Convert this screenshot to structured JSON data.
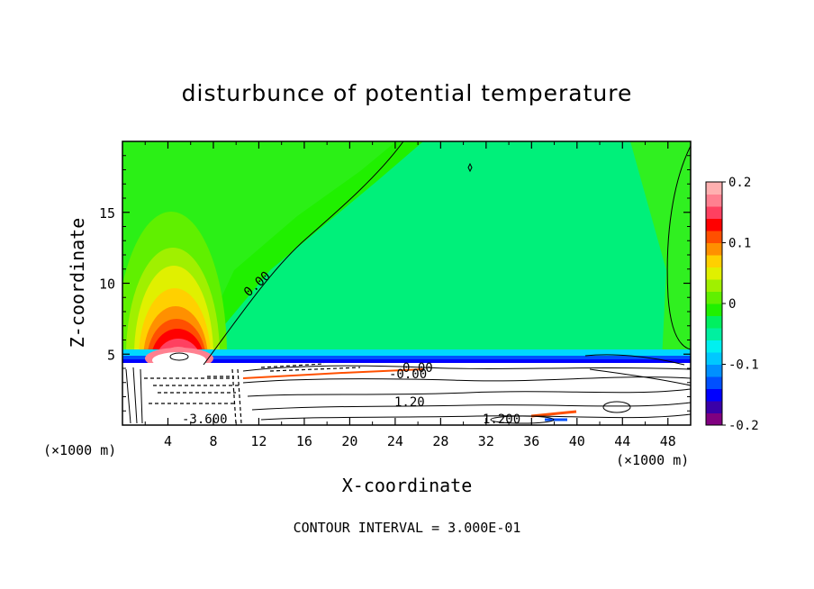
{
  "chart_data": {
    "type": "heatmap",
    "title": "disturbunce of potential temperature",
    "xlabel": "X-coordinate",
    "ylabel": "Z-coordinate",
    "x_unit": "(×1000 m)",
    "x_unit_right": "(×1000 m)",
    "xlim": [
      0,
      50
    ],
    "ylim": [
      0,
      20
    ],
    "x_ticks": [
      4,
      8,
      12,
      16,
      20,
      24,
      28,
      32,
      36,
      40,
      44,
      48
    ],
    "y_ticks": [
      5,
      10,
      15
    ],
    "colorbar": {
      "range": [
        -0.2,
        0.2
      ],
      "tick_values": [
        0.2,
        0.1,
        0,
        -0.1,
        -0.2
      ],
      "tick_labels": [
        "0.2",
        "0.1",
        "0",
        "-0.1",
        "-0.2"
      ],
      "colors": [
        "#800080",
        "#3a00a8",
        "#0000ff",
        "#0050ff",
        "#0090ff",
        "#00c8ff",
        "#00f0f0",
        "#00f0a0",
        "#00f060",
        "#20f000",
        "#60f000",
        "#a0f000",
        "#e0f000",
        "#ffd000",
        "#ff9000",
        "#ff5000",
        "#ff0000",
        "#ff4060",
        "#ff8090",
        "#ffb0b0"
      ]
    },
    "contour_labels": [
      "0.00",
      "0.00",
      "-0.00",
      "1.20",
      "-3.600",
      "1.200"
    ],
    "contour_interval": "CONTOUR INTERVAL = 3.000E-01"
  }
}
